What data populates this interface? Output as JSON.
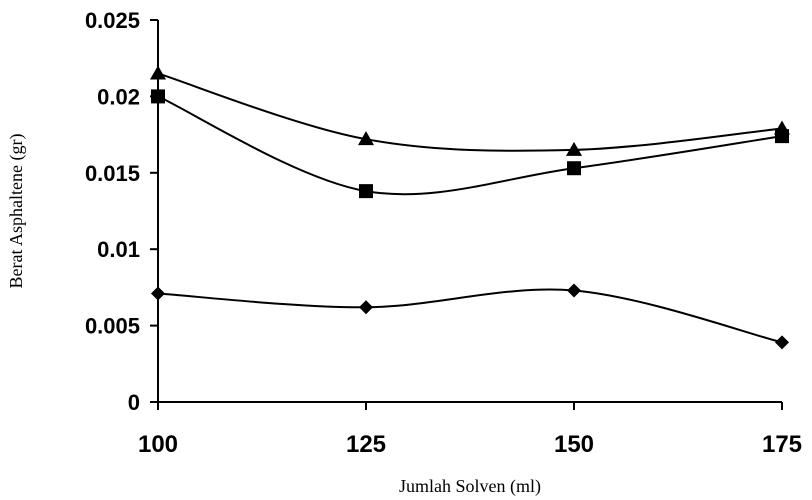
{
  "chart_data": {
    "type": "line",
    "title": "",
    "xlabel": "Jumlah Solven (ml)",
    "ylabel": "Berat Asphaltene (gr)",
    "x": [
      100,
      125,
      150,
      175
    ],
    "xlim": [
      100,
      175
    ],
    "ylim": [
      0,
      0.025
    ],
    "x_ticks": [
      "100",
      "125",
      "150",
      "175"
    ],
    "y_ticks": [
      "0",
      "0.005",
      "0.01",
      "0.015",
      "0.02",
      "0.025"
    ],
    "grid": false,
    "legend": "none",
    "smooth": true,
    "series": [
      {
        "marker": "diamond",
        "values": [
          0.0071,
          0.0062,
          0.0073,
          0.0039
        ]
      },
      {
        "marker": "square",
        "values": [
          0.02,
          0.0138,
          0.0153,
          0.0174
        ]
      },
      {
        "marker": "triangle",
        "values": [
          0.0215,
          0.0172,
          0.0165,
          0.0179
        ]
      }
    ]
  }
}
